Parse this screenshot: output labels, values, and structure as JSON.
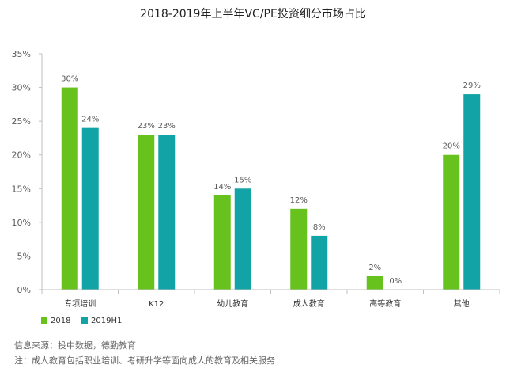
{
  "chart_data": {
    "type": "bar",
    "title": "2018-2019年上半年VC/PE投资细分市场占比",
    "categories": [
      "专项培训",
      "K12",
      "幼儿教育",
      "成人教育",
      "高等教育",
      "其他"
    ],
    "series": [
      {
        "name": "2018",
        "color": "#67c21e",
        "values": [
          30,
          23,
          14,
          12,
          2,
          20
        ],
        "labels": [
          "30%",
          "23%",
          "14%",
          "12%",
          "2%",
          "20%"
        ]
      },
      {
        "name": "2019H1",
        "color": "#12a3a6",
        "values": [
          24,
          23,
          15,
          8,
          0,
          29
        ],
        "labels": [
          "24%",
          "23%",
          "15%",
          "8%",
          "0%",
          "29%"
        ]
      }
    ],
    "ylim": [
      0,
      35
    ],
    "yticks": [
      0,
      5,
      10,
      15,
      20,
      25,
      30,
      35
    ],
    "ytick_labels": [
      "0%",
      "5%",
      "10%",
      "15%",
      "20%",
      "25%",
      "30%",
      "35%"
    ],
    "grid": false,
    "legend": "bottom-left"
  },
  "footer": {
    "source": "信息来源：投中数据，德勤教育",
    "note": "注：成人教育包括职业培训、考研升学等面向成人的教育及相关服务"
  }
}
